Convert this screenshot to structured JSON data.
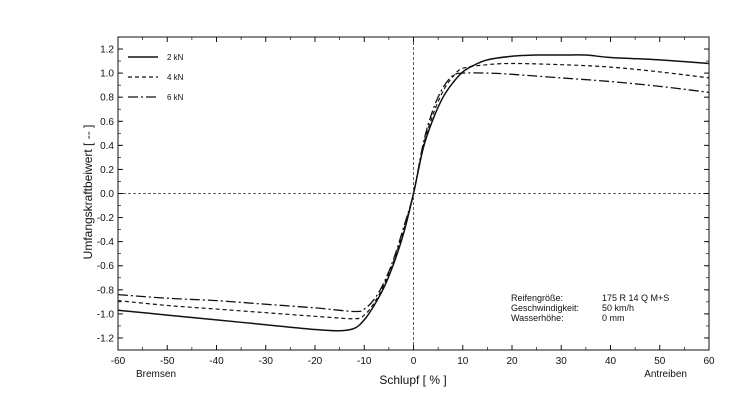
{
  "chart_data": {
    "type": "line",
    "xlabel": "Schlupf [ % ]",
    "ylabel": "Umfangskraftbeiwert [ -- ]",
    "xlim": [
      -60,
      60
    ],
    "ylim": [
      -1.3,
      1.3
    ],
    "x_ticks": [
      -60,
      -50,
      -40,
      -30,
      -20,
      -10,
      0,
      10,
      20,
      30,
      40,
      50,
      60
    ],
    "y_ticks": [
      -1.2,
      -1.0,
      -0.8,
      -0.6,
      -0.4,
      -0.2,
      0.0,
      0.2,
      0.4,
      0.6,
      0.8,
      1.0,
      1.2
    ],
    "y_tick_labels": [
      "-1.2",
      "-1.0",
      "-0.8",
      "-0.6",
      "-0.4",
      "-0.2",
      "0.0",
      "0.2",
      "0.4",
      "0.6",
      "0.8",
      "1.0",
      "1.2"
    ],
    "x_left_label": "Bremsen",
    "x_right_label": "Antreiben",
    "grid": false,
    "zero_lines": true,
    "legend_position": "top-left",
    "series": [
      {
        "name": "2 kN",
        "dash": "solid",
        "x": [
          -60,
          -50,
          -40,
          -30,
          -20,
          -15,
          -12,
          -10,
          -8,
          -6,
          -4,
          -2,
          0,
          2,
          4,
          6,
          8,
          10,
          12,
          15,
          20,
          25,
          30,
          35,
          40,
          50,
          60
        ],
        "y": [
          -0.97,
          -1.01,
          -1.05,
          -1.09,
          -1.13,
          -1.14,
          -1.12,
          -1.05,
          -0.93,
          -0.78,
          -0.58,
          -0.33,
          0.0,
          0.38,
          0.62,
          0.8,
          0.92,
          1.01,
          1.06,
          1.11,
          1.14,
          1.15,
          1.15,
          1.15,
          1.13,
          1.11,
          1.08
        ]
      },
      {
        "name": "4 kN",
        "dash": "dashed",
        "x": [
          -60,
          -50,
          -40,
          -30,
          -20,
          -12,
          -10,
          -8,
          -6,
          -4,
          -2,
          0,
          2,
          4,
          6,
          8,
          10,
          15,
          20,
          30,
          40,
          50,
          60
        ],
        "y": [
          -0.89,
          -0.93,
          -0.96,
          -0.99,
          -1.02,
          -1.04,
          -1.01,
          -0.91,
          -0.76,
          -0.56,
          -0.3,
          0.0,
          0.4,
          0.66,
          0.85,
          0.97,
          1.04,
          1.07,
          1.08,
          1.07,
          1.05,
          1.01,
          0.96
        ]
      },
      {
        "name": "6 kN",
        "dash": "dashdot",
        "x": [
          -60,
          -50,
          -40,
          -30,
          -20,
          -12,
          -10,
          -8,
          -6,
          -4,
          -2,
          0,
          2,
          4,
          6,
          8,
          10,
          15,
          20,
          30,
          40,
          50,
          60
        ],
        "y": [
          -0.84,
          -0.87,
          -0.89,
          -0.92,
          -0.95,
          -0.98,
          -0.96,
          -0.88,
          -0.74,
          -0.54,
          -0.28,
          0.0,
          0.42,
          0.7,
          0.88,
          0.98,
          1.0,
          1.0,
          0.99,
          0.96,
          0.93,
          0.89,
          0.84
        ]
      }
    ],
    "info": [
      {
        "label": "Reifengröße:",
        "value": "175 R 14 Q M+S"
      },
      {
        "label": "Geschwindigkeit:",
        "value": "50 km/h"
      },
      {
        "label": "Wasserhöhe:",
        "value": "0 mm"
      }
    ]
  }
}
